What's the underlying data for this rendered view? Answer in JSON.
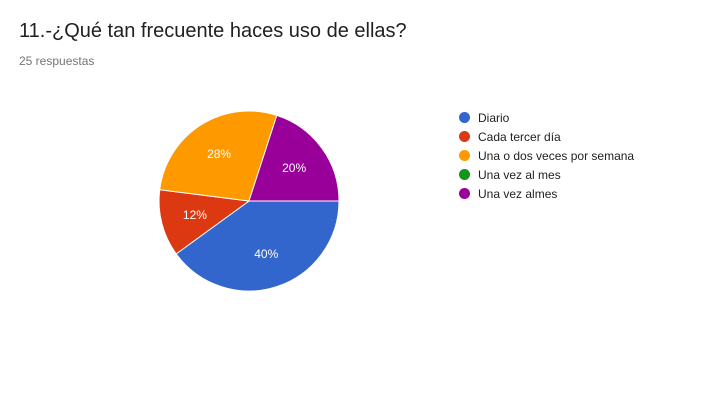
{
  "question": {
    "title": "11.-¿Qué tan frecuente haces uso de ellas?",
    "responses": "25 respuestas"
  },
  "chart_data": {
    "type": "pie",
    "categories": [
      "Diario",
      "Cada tercer día",
      "Una o dos veces por semana",
      "Una vez al mes",
      "Una vez almes"
    ],
    "values": [
      40,
      12,
      28,
      0,
      20
    ],
    "labels": [
      "40%",
      "12%",
      "28%",
      "",
      "20%"
    ],
    "colors": [
      "#3366cc",
      "#dc3912",
      "#ff9900",
      "#109618",
      "#990099"
    ],
    "legend": "right"
  }
}
